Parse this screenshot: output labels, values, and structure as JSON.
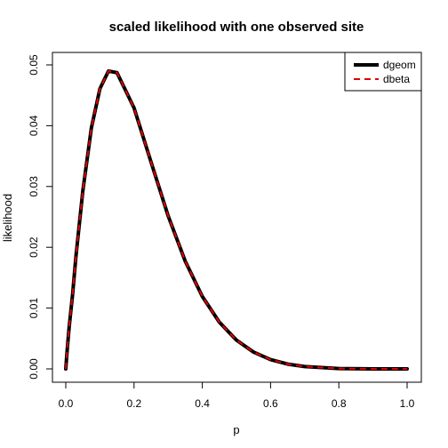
{
  "chart_data": {
    "type": "line",
    "title": "scaled likelihood with one observed site",
    "xlabel": "p",
    "ylabel": "likelihood",
    "xlim": [
      0,
      1
    ],
    "ylim": [
      0,
      0.05
    ],
    "xticks": [
      "0.0",
      "0.2",
      "0.4",
      "0.6",
      "0.8",
      "1.0"
    ],
    "yticks": [
      "0.00",
      "0.01",
      "0.02",
      "0.03",
      "0.04",
      "0.05"
    ],
    "grid": false,
    "legend_position": "top-right",
    "x": [
      0,
      0.0025,
      0.005,
      0.01,
      0.02,
      0.03,
      0.05,
      0.075,
      0.1,
      0.125,
      0.15,
      0.2,
      0.25,
      0.3,
      0.35,
      0.4,
      0.45,
      0.5,
      0.55,
      0.6,
      0.65,
      0.7,
      0.8,
      0.9,
      1.0
    ],
    "series": [
      {
        "name": "dgeom",
        "color": "#000000",
        "style": "solid",
        "values": [
          0,
          0.00193,
          0.00371,
          0.00693,
          0.01226,
          0.01864,
          0.0293,
          0.03963,
          0.04608,
          0.04898,
          0.04872,
          0.04292,
          0.03398,
          0.02515,
          0.01771,
          0.01192,
          0.00768,
          0.00473,
          0.00277,
          0.00153,
          0.00079,
          0.00038,
          6e-05,
          2.4e-06,
          0
        ]
      },
      {
        "name": "dbeta",
        "color": "#df0000",
        "style": "dashed",
        "values": [
          0,
          0.00193,
          0.00371,
          0.00693,
          0.01226,
          0.01864,
          0.0293,
          0.03963,
          0.04608,
          0.04898,
          0.04872,
          0.04292,
          0.03398,
          0.02515,
          0.01771,
          0.01192,
          0.00768,
          0.00473,
          0.00277,
          0.00153,
          0.00079,
          0.00038,
          6e-05,
          2.4e-06,
          0
        ]
      }
    ]
  }
}
